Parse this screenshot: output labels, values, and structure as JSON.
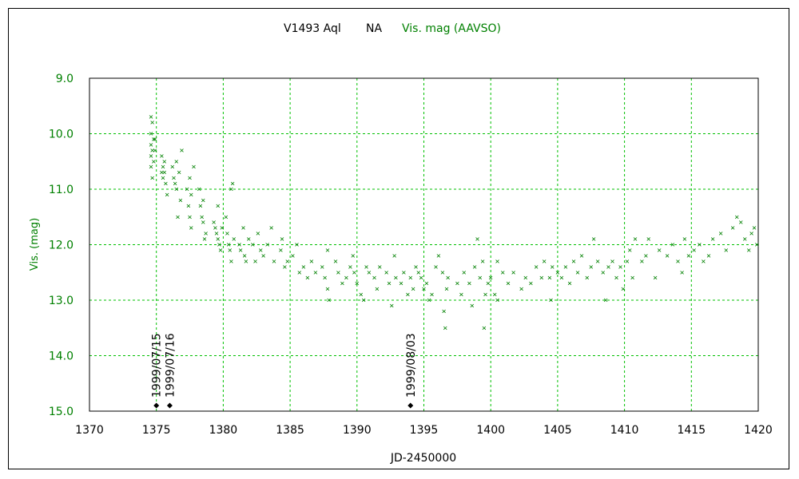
{
  "title": {
    "star": "V1493 Aql",
    "type": "NA",
    "series": "Vis. mag (AAVSO)"
  },
  "chart_data": {
    "type": "scatter",
    "xlabel": "JD-2450000",
    "ylabel": "Vis. (mag)",
    "xlim": [
      1370,
      1420
    ],
    "ylim": [
      15.0,
      9.0
    ],
    "y_inverted": true,
    "grid": true,
    "x_ticks": [
      "1370",
      "1375",
      "1380",
      "1385",
      "1390",
      "1395",
      "1400",
      "1405",
      "1410",
      "1415",
      "1420"
    ],
    "y_ticks": [
      "9.0",
      "10.0",
      "11.0",
      "12.0",
      "13.0",
      "14.0",
      "15.0"
    ],
    "marker": "×",
    "colors": {
      "points": "#008000",
      "grid": "#00c000",
      "title_accent": "#008000"
    },
    "series": [
      {
        "points": [
          [
            1374.6,
            9.7
          ],
          [
            1374.7,
            9.8
          ],
          [
            1374.6,
            10.0
          ],
          [
            1374.8,
            10.1
          ],
          [
            1374.6,
            10.2
          ],
          [
            1374.7,
            10.3
          ],
          [
            1374.9,
            10.1
          ],
          [
            1374.6,
            10.4
          ],
          [
            1374.8,
            10.5
          ],
          [
            1374.7,
            10.8
          ],
          [
            1374.6,
            10.6
          ],
          [
            1374.9,
            10.3
          ],
          [
            1375.4,
            10.4
          ],
          [
            1375.5,
            10.6
          ],
          [
            1375.6,
            10.7
          ],
          [
            1375.5,
            10.8
          ],
          [
            1375.7,
            10.9
          ],
          [
            1375.6,
            10.5
          ],
          [
            1375.8,
            11.1
          ],
          [
            1375.4,
            10.7
          ],
          [
            1376.2,
            10.6
          ],
          [
            1376.3,
            10.8
          ],
          [
            1376.4,
            10.9
          ],
          [
            1376.5,
            11.0
          ],
          [
            1376.6,
            11.5
          ],
          [
            1376.7,
            10.7
          ],
          [
            1376.5,
            10.5
          ],
          [
            1376.9,
            10.3
          ],
          [
            1376.8,
            11.2
          ],
          [
            1377.3,
            11.0
          ],
          [
            1377.4,
            11.3
          ],
          [
            1377.5,
            11.5
          ],
          [
            1377.6,
            11.7
          ],
          [
            1377.6,
            11.1
          ],
          [
            1377.8,
            10.6
          ],
          [
            1377.5,
            10.8
          ],
          [
            1378.2,
            11.0
          ],
          [
            1378.3,
            11.3
          ],
          [
            1378.4,
            11.5
          ],
          [
            1378.5,
            11.6
          ],
          [
            1378.6,
            11.9
          ],
          [
            1378.7,
            11.8
          ],
          [
            1378.5,
            11.2
          ],
          [
            1379.3,
            11.6
          ],
          [
            1379.4,
            11.7
          ],
          [
            1379.5,
            11.8
          ],
          [
            1379.6,
            11.9
          ],
          [
            1379.7,
            12.0
          ],
          [
            1379.8,
            12.1
          ],
          [
            1379.6,
            11.3
          ],
          [
            1379.9,
            11.7
          ],
          [
            1380.2,
            11.5
          ],
          [
            1380.3,
            11.8
          ],
          [
            1380.4,
            12.0
          ],
          [
            1380.5,
            12.1
          ],
          [
            1380.6,
            12.3
          ],
          [
            1380.7,
            10.9
          ],
          [
            1380.6,
            11.0
          ],
          [
            1380.8,
            11.9
          ],
          [
            1381.2,
            12.0
          ],
          [
            1381.3,
            12.1
          ],
          [
            1381.5,
            11.7
          ],
          [
            1381.6,
            12.2
          ],
          [
            1381.7,
            12.3
          ],
          [
            1381.9,
            11.9
          ],
          [
            1382.2,
            12.0
          ],
          [
            1382.4,
            12.3
          ],
          [
            1382.6,
            11.8
          ],
          [
            1382.8,
            12.1
          ],
          [
            1383.0,
            12.2
          ],
          [
            1383.3,
            12.0
          ],
          [
            1383.6,
            11.7
          ],
          [
            1383.8,
            12.3
          ],
          [
            1384.3,
            12.1
          ],
          [
            1384.4,
            11.9
          ],
          [
            1384.6,
            12.4
          ],
          [
            1384.8,
            12.3
          ],
          [
            1385.2,
            12.2
          ],
          [
            1385.5,
            12.0
          ],
          [
            1385.7,
            12.5
          ],
          [
            1386.0,
            12.4
          ],
          [
            1386.3,
            12.6
          ],
          [
            1386.6,
            12.3
          ],
          [
            1386.9,
            12.5
          ],
          [
            1387.4,
            12.4
          ],
          [
            1387.6,
            12.6
          ],
          [
            1387.8,
            12.8
          ],
          [
            1387.9,
            13.0
          ],
          [
            1387.8,
            12.1
          ],
          [
            1388.4,
            12.3
          ],
          [
            1388.6,
            12.5
          ],
          [
            1388.9,
            12.7
          ],
          [
            1389.2,
            12.6
          ],
          [
            1389.5,
            12.4
          ],
          [
            1389.7,
            12.2
          ],
          [
            1389.8,
            12.5
          ],
          [
            1390.0,
            12.7
          ],
          [
            1390.3,
            12.9
          ],
          [
            1390.5,
            13.0
          ],
          [
            1390.7,
            12.4
          ],
          [
            1390.9,
            12.5
          ],
          [
            1391.3,
            12.6
          ],
          [
            1391.5,
            12.8
          ],
          [
            1391.7,
            12.4
          ],
          [
            1392.2,
            12.5
          ],
          [
            1392.4,
            12.7
          ],
          [
            1392.6,
            13.1
          ],
          [
            1392.8,
            12.2
          ],
          [
            1392.9,
            12.6
          ],
          [
            1393.3,
            12.7
          ],
          [
            1393.5,
            12.5
          ],
          [
            1393.8,
            12.9
          ],
          [
            1394.0,
            12.6
          ],
          [
            1394.2,
            12.8
          ],
          [
            1394.4,
            12.4
          ],
          [
            1394.6,
            12.5
          ],
          [
            1394.8,
            12.6
          ],
          [
            1395.0,
            12.8
          ],
          [
            1395.2,
            12.7
          ],
          [
            1395.4,
            13.0
          ],
          [
            1395.6,
            12.9
          ],
          [
            1395.9,
            12.4
          ],
          [
            1396.1,
            12.2
          ],
          [
            1396.4,
            12.5
          ],
          [
            1396.5,
            13.2
          ],
          [
            1396.6,
            13.5
          ],
          [
            1396.7,
            12.8
          ],
          [
            1396.8,
            12.6
          ],
          [
            1397.5,
            12.7
          ],
          [
            1397.8,
            12.9
          ],
          [
            1398.0,
            12.5
          ],
          [
            1398.4,
            12.7
          ],
          [
            1398.6,
            13.1
          ],
          [
            1398.8,
            12.4
          ],
          [
            1399.0,
            11.9
          ],
          [
            1399.2,
            12.6
          ],
          [
            1399.4,
            12.3
          ],
          [
            1399.5,
            13.5
          ],
          [
            1399.6,
            12.9
          ],
          [
            1399.8,
            12.7
          ],
          [
            1400.0,
            12.6
          ],
          [
            1400.3,
            12.9
          ],
          [
            1400.5,
            13.0
          ],
          [
            1400.5,
            12.3
          ],
          [
            1400.9,
            12.5
          ],
          [
            1401.3,
            12.7
          ],
          [
            1401.7,
            12.5
          ],
          [
            1402.3,
            12.8
          ],
          [
            1402.6,
            12.6
          ],
          [
            1403.0,
            12.7
          ],
          [
            1403.4,
            12.4
          ],
          [
            1403.8,
            12.6
          ],
          [
            1404.0,
            12.3
          ],
          [
            1404.4,
            12.6
          ],
          [
            1404.5,
            13.0
          ],
          [
            1404.6,
            12.4
          ],
          [
            1405.0,
            12.5
          ],
          [
            1405.3,
            12.6
          ],
          [
            1405.6,
            12.4
          ],
          [
            1405.9,
            12.7
          ],
          [
            1406.2,
            12.3
          ],
          [
            1406.5,
            12.5
          ],
          [
            1406.8,
            12.2
          ],
          [
            1407.2,
            12.6
          ],
          [
            1407.5,
            12.4
          ],
          [
            1407.7,
            11.9
          ],
          [
            1408.0,
            12.3
          ],
          [
            1408.4,
            12.5
          ],
          [
            1408.6,
            13.0
          ],
          [
            1408.8,
            12.4
          ],
          [
            1409.1,
            12.3
          ],
          [
            1409.4,
            12.6
          ],
          [
            1409.7,
            12.4
          ],
          [
            1409.9,
            12.8
          ],
          [
            1410.2,
            12.3
          ],
          [
            1410.4,
            12.1
          ],
          [
            1410.6,
            12.6
          ],
          [
            1410.8,
            11.9
          ],
          [
            1411.3,
            12.3
          ],
          [
            1411.6,
            12.2
          ],
          [
            1411.8,
            11.9
          ],
          [
            1412.3,
            12.6
          ],
          [
            1412.6,
            12.1
          ],
          [
            1413.2,
            12.2
          ],
          [
            1413.6,
            12.0
          ],
          [
            1414.0,
            12.3
          ],
          [
            1414.3,
            12.5
          ],
          [
            1414.5,
            11.9
          ],
          [
            1414.8,
            12.2
          ],
          [
            1415.2,
            12.1
          ],
          [
            1415.6,
            12.0
          ],
          [
            1415.9,
            12.3
          ],
          [
            1416.3,
            12.2
          ],
          [
            1416.6,
            11.9
          ],
          [
            1417.2,
            11.8
          ],
          [
            1417.6,
            12.1
          ],
          [
            1418.1,
            11.7
          ],
          [
            1418.4,
            11.5
          ],
          [
            1418.7,
            11.6
          ],
          [
            1419.0,
            11.9
          ],
          [
            1419.3,
            12.1
          ],
          [
            1419.5,
            11.8
          ],
          [
            1419.7,
            11.7
          ],
          [
            1419.9,
            12.0
          ]
        ]
      }
    ],
    "annotations": [
      {
        "x": 1375.0,
        "label": "1999/07/15"
      },
      {
        "x": 1376.0,
        "label": "1999/07/16"
      },
      {
        "x": 1394.0,
        "label": "1999/08/03"
      }
    ]
  }
}
